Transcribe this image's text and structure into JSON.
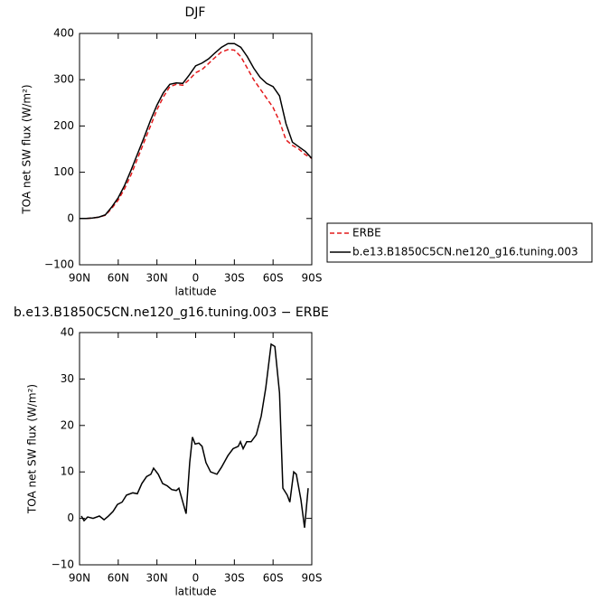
{
  "chart_data": [
    {
      "type": "line",
      "title": "DJF",
      "ylabel": "TOA net SW flux (W/m²)",
      "xlabel": "latitude",
      "x": [
        90,
        85,
        80,
        75,
        70,
        65,
        60,
        55,
        50,
        45,
        40,
        35,
        30,
        25,
        20,
        15,
        10,
        5,
        0,
        -5,
        -10,
        -15,
        -20,
        -25,
        -30,
        -35,
        -40,
        -45,
        -50,
        -55,
        -60,
        -65,
        -70,
        -75,
        -80,
        -85,
        -90
      ],
      "series": [
        {
          "name": "ERBE",
          "color": "#e41a1c",
          "line_style": "dashed",
          "values": [
            0,
            0,
            1,
            3,
            7,
            22,
            40,
            65,
            95,
            130,
            165,
            200,
            235,
            263,
            285,
            290,
            288,
            300,
            315,
            322,
            335,
            348,
            360,
            365,
            364,
            350,
            325,
            300,
            280,
            260,
            240,
            210,
            170,
            158,
            150,
            138,
            130
          ]
        },
        {
          "name": "b.e13.B1850C5CN.ne120_g16.tuning.003",
          "color": "#000000",
          "line_style": "solid",
          "values": [
            0,
            0,
            1,
            3,
            8,
            25,
            45,
            72,
            105,
            140,
            175,
            212,
            245,
            272,
            290,
            293,
            292,
            310,
            330,
            336,
            345,
            358,
            370,
            378,
            378,
            370,
            350,
            325,
            305,
            292,
            285,
            265,
            205,
            165,
            155,
            145,
            130
          ]
        }
      ],
      "xlim": [
        90,
        -90
      ],
      "ylim": [
        -100,
        400
      ],
      "xticks": [
        {
          "value": 90,
          "label": "90N"
        },
        {
          "value": 60,
          "label": "60N"
        },
        {
          "value": 30,
          "label": "30N"
        },
        0,
        {
          "value": -30,
          "label": "30S"
        },
        {
          "value": -60,
          "label": "60S"
        },
        {
          "value": -90,
          "label": "90S"
        }
      ],
      "yticks": [
        {
          "value": -100,
          "label": "−100"
        },
        0,
        100,
        200,
        300,
        400
      ],
      "legend": "outside-right"
    },
    {
      "type": "line",
      "title": "b.e13.B1850C5CN.ne120_g16.tuning.003 − ERBE",
      "ylabel": "TOA net SW flux (W/m²)",
      "xlabel": "latitude",
      "x": [
        88.6,
        86.5,
        83.7,
        79.5,
        74.6,
        71,
        67.6,
        64,
        60.6,
        57,
        53.6,
        48.7,
        45.2,
        41.7,
        38,
        34.7,
        32.6,
        29,
        25.6,
        22,
        18.6,
        15,
        13,
        7.4,
        4.6,
        2.5,
        0.4,
        -2.5,
        -5,
        -8,
        -11.6,
        -16.5,
        -20,
        -25,
        -29,
        -33,
        -34.7,
        -36.8,
        -39.6,
        -43,
        -47,
        -50.8,
        -54.3,
        -58.5,
        -61.4,
        -65,
        -67.6,
        -71,
        -73,
        -76,
        -78,
        -81.6,
        -84.4,
        -87.2
      ],
      "series": [
        {
          "name": null,
          "color": "#000000",
          "line_style": "solid",
          "values": [
            0.5,
            -0.5,
            0.3,
            0,
            0.5,
            -0.3,
            0.5,
            1.5,
            3,
            3.5,
            5,
            5.5,
            5.3,
            7.5,
            9,
            9.5,
            10.8,
            9.5,
            7.5,
            7,
            6.2,
            6,
            6.5,
            1,
            12,
            17.5,
            16,
            16.2,
            15.5,
            12,
            10,
            9.5,
            11,
            13.5,
            15,
            15.5,
            16.5,
            15,
            16.5,
            16.5,
            18,
            22,
            28,
            37.5,
            37,
            27,
            6.5,
            5,
            3.5,
            10,
            9.5,
            4,
            -2,
            6.5
          ]
        }
      ],
      "xlim": [
        90,
        -90
      ],
      "ylim": [
        -10,
        40
      ],
      "xticks": [
        {
          "value": 90,
          "label": "90N"
        },
        {
          "value": 60,
          "label": "60N"
        },
        {
          "value": 30,
          "label": "30N"
        },
        0,
        {
          "value": -30,
          "label": "30S"
        },
        {
          "value": -60,
          "label": "60S"
        },
        {
          "value": -90,
          "label": "90S"
        }
      ],
      "yticks": [
        {
          "value": -10,
          "label": "−10"
        },
        0,
        10,
        20,
        30,
        40
      ]
    }
  ]
}
